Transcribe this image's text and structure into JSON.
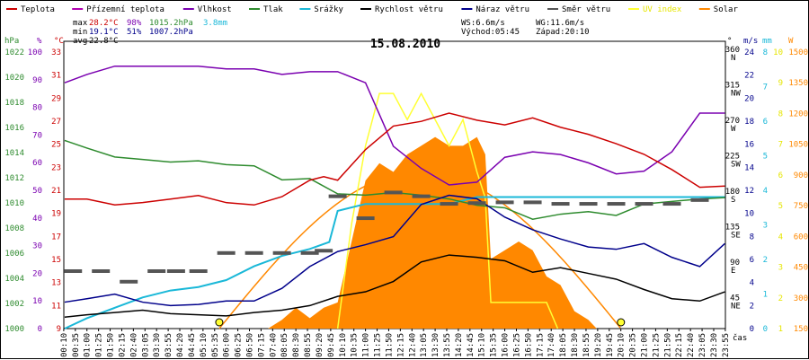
{
  "chart_data": {
    "type": "line",
    "title": "15.08.2010",
    "xlabel": "čas",
    "legend": [
      {
        "name": "Teplota",
        "color": "#cc0000"
      },
      {
        "name": "Přízemní teplota",
        "color": "#b000b0"
      },
      {
        "name": "Vlhkost",
        "color": "#7a00b0"
      },
      {
        "name": "Tlak",
        "color": "#2e8b2e"
      },
      {
        "name": "Srážky",
        "color": "#1ab8d8"
      },
      {
        "name": "Rychlost větru",
        "color": "#000000"
      },
      {
        "name": "Náraz větru",
        "color": "#00008b"
      },
      {
        "name": "Směr větru",
        "color": "#555555"
      },
      {
        "name": "UV index",
        "color": "#ffff33"
      },
      {
        "name": "Solar",
        "color": "#ff8800"
      }
    ],
    "stats": {
      "max": {
        "label": "max",
        "temp": "28.2°C",
        "hum": "98%",
        "press": "1015.2hPa",
        "rain": "3.8mm"
      },
      "min": {
        "label": "min",
        "temp": "19.1°C",
        "hum": "51%",
        "press": "1007.2hPa"
      },
      "avg": {
        "label": "avg",
        "temp": "22.8°C"
      }
    },
    "wind_info": {
      "ws": "WS:6.6m/s",
      "wg": "WG:11.6m/s",
      "sunrise": "Východ:05:45",
      "sunset": "Západ:20:10"
    },
    "axes": {
      "pressure": {
        "unit": "hPa",
        "ticks": [
          "1022",
          "1020",
          "1018",
          "1016",
          "1014",
          "1012",
          "1010",
          "1008",
          "1006",
          "1004",
          "1002",
          "1000"
        ]
      },
      "humidity": {
        "unit": "%",
        "ticks": [
          "100",
          "90",
          "80",
          "70",
          "60",
          "50",
          "40",
          "30",
          "20",
          "10",
          "0"
        ]
      },
      "temperature": {
        "unit": "°C",
        "ticks": [
          "33",
          "31",
          "29",
          "27",
          "25",
          "23",
          "21",
          "19",
          "17",
          "15",
          "13",
          "11",
          "9"
        ]
      },
      "direction": {
        "unit": "°",
        "ticks": [
          "360 N",
          "315 NW",
          "270 W",
          "225 SW",
          "180 S",
          "135 SE",
          "90 E",
          "45 NE"
        ]
      },
      "speed": {
        "unit": "m/s",
        "ticks": [
          "24",
          "22",
          "20",
          "18",
          "16",
          "14",
          "12",
          "10",
          "8",
          "6",
          "4",
          "2",
          "0"
        ]
      },
      "rain": {
        "unit": "mm",
        "ticks": [
          "8",
          "7",
          "6",
          "5",
          "4",
          "3",
          "2",
          "1",
          "0"
        ]
      },
      "uv": {
        "unit": "",
        "ticks": [
          "10",
          "9",
          "8",
          "7",
          "6",
          "5",
          "4",
          "3",
          "2",
          "1"
        ]
      },
      "solar": {
        "unit": "W",
        "ticks": [
          "1500",
          "1350",
          "1200",
          "1050",
          "900",
          "750",
          "600",
          "450",
          "300",
          "150"
        ]
      }
    },
    "x_ticks": [
      "00:10",
      "00:35",
      "01:00",
      "01:25",
      "01:50",
      "02:15",
      "02:40",
      "03:05",
      "03:30",
      "03:55",
      "04:20",
      "04:45",
      "05:10",
      "05:35",
      "06:00",
      "06:25",
      "06:50",
      "07:15",
      "07:40",
      "08:05",
      "08:30",
      "08:55",
      "09:20",
      "09:45",
      "10:10",
      "10:35",
      "11:00",
      "11:25",
      "11:50",
      "12:15",
      "12:40",
      "13:05",
      "13:30",
      "13:55",
      "14:20",
      "14:45",
      "15:10",
      "15:35",
      "16:00",
      "16:25",
      "16:50",
      "17:15",
      "17:40",
      "18:05",
      "18:30",
      "18:55",
      "19:20",
      "19:45",
      "20:10",
      "20:35",
      "21:00",
      "21:25",
      "21:50",
      "22:15",
      "22:40",
      "23:05",
      "23:30",
      "23:55"
    ],
    "x_range_hours": [
      0.17,
      23.92
    ],
    "series": {
      "temperature_c": {
        "x": [
          0.2,
          1,
          2,
          3,
          4,
          5,
          6,
          7,
          8,
          9,
          9.5,
          10,
          11,
          12,
          13,
          14,
          15,
          16,
          17,
          18,
          19,
          20,
          21,
          22,
          23,
          23.9
        ],
        "y": [
          20.0,
          20.0,
          19.5,
          19.7,
          20.0,
          20.3,
          19.7,
          19.5,
          20.2,
          21.6,
          21.9,
          21.6,
          24.2,
          26.2,
          26.6,
          27.3,
          26.7,
          26.3,
          26.9,
          26.1,
          25.5,
          24.7,
          23.8,
          22.5,
          21.0,
          21.1
        ]
      },
      "humidity_pct": {
        "x": [
          0.2,
          1,
          2,
          3,
          4,
          5,
          6,
          7,
          8,
          9,
          10,
          11,
          12,
          13,
          14,
          15,
          16,
          17,
          18,
          19,
          20,
          21,
          22,
          23,
          23.9
        ],
        "y": [
          89,
          92,
          95,
          95,
          95,
          95,
          94,
          94,
          92,
          93,
          93,
          89,
          66,
          58,
          52,
          53,
          62,
          64,
          63,
          60,
          56,
          57,
          64,
          78,
          78
        ]
      },
      "pressure_hpa": {
        "x": [
          0.2,
          1,
          2,
          3,
          4,
          5,
          6,
          7,
          8,
          9,
          10,
          11,
          12,
          13,
          14,
          15,
          16,
          17,
          18,
          19,
          20,
          21,
          22,
          23,
          23.9
        ],
        "y": [
          1014.8,
          1014.2,
          1013.5,
          1013.3,
          1013.1,
          1013.2,
          1012.9,
          1012.8,
          1011.7,
          1011.8,
          1010.6,
          1010.5,
          1010.7,
          1010.5,
          1010.2,
          1009.7,
          1009.5,
          1008.6,
          1009.0,
          1009.2,
          1008.9,
          1009.8,
          1010.0,
          1010.2,
          1010.3
        ]
      },
      "rain_mm": {
        "x": [
          0.2,
          1,
          2,
          3,
          4,
          5,
          6,
          7,
          8,
          9,
          9.7,
          10,
          11,
          12,
          13,
          14,
          15,
          16,
          17,
          18,
          19,
          20,
          21,
          22,
          23,
          23.9
        ],
        "y": [
          0,
          0.3,
          0.6,
          0.9,
          1.1,
          1.2,
          1.4,
          1.8,
          2.1,
          2.3,
          2.5,
          3.4,
          3.6,
          3.6,
          3.6,
          3.6,
          3.8,
          3.8,
          3.8,
          3.8,
          3.8,
          3.8,
          3.8,
          3.8,
          3.8,
          3.8
        ]
      },
      "wind_speed_ms": {
        "x": [
          0.2,
          1,
          2,
          3,
          4,
          5,
          6,
          7,
          8,
          9,
          10,
          11,
          12,
          13,
          14,
          15,
          16,
          17,
          18,
          19,
          20,
          21,
          22,
          23,
          23.9
        ],
        "y": [
          1.0,
          1.2,
          1.4,
          1.6,
          1.3,
          1.2,
          1.1,
          1.4,
          1.6,
          2.0,
          2.8,
          3.2,
          4.1,
          5.8,
          6.4,
          6.2,
          5.9,
          4.9,
          5.3,
          4.8,
          4.3,
          3.4,
          2.6,
          2.4,
          3.2
        ]
      },
      "wind_gust_ms": {
        "x": [
          0.2,
          1,
          2,
          3,
          4,
          5,
          6,
          7,
          8,
          9,
          10,
          11,
          12,
          13,
          14,
          15,
          16,
          17,
          18,
          19,
          20,
          21,
          22,
          23,
          23.9
        ],
        "y": [
          2.3,
          2.6,
          3.0,
          2.3,
          2.0,
          2.1,
          2.4,
          2.4,
          3.5,
          5.4,
          6.7,
          7.3,
          8.0,
          10.8,
          11.6,
          11.3,
          9.7,
          8.6,
          7.8,
          7.1,
          6.9,
          7.4,
          6.2,
          5.4,
          7.4
        ]
      },
      "wind_dir_deg": {
        "x": [
          0.5,
          1.5,
          2.5,
          3.5,
          4.2,
          5,
          6,
          7,
          8,
          9,
          9.5,
          10,
          11,
          12,
          13,
          14,
          15,
          16,
          17,
          18,
          19,
          20,
          21,
          22,
          23
        ],
        "y": [
          76,
          76,
          62,
          76,
          76,
          76,
          100,
          100,
          100,
          100,
          103,
          175,
          146,
          180,
          175,
          165,
          166,
          167,
          167,
          165,
          165,
          165,
          165,
          165,
          170
        ]
      },
      "solar_wm2": {
        "x": [
          7.5,
          8,
          8.5,
          9,
          9.5,
          10,
          10.5,
          11,
          11.5,
          12,
          12.5,
          13,
          13.5,
          14,
          14.5,
          15,
          15.3,
          15.5,
          16,
          16.5,
          17,
          17.5,
          18,
          18.5,
          19,
          19.3
        ],
        "y": [
          0,
          50,
          120,
          60,
          120,
          150,
          500,
          850,
          950,
          900,
          1000,
          1050,
          1100,
          1050,
          1050,
          1100,
          1000,
          400,
          450,
          500,
          450,
          300,
          250,
          100,
          50,
          0
        ]
      },
      "uv_index": {
        "x": [
          10,
          10.5,
          11,
          11.5,
          12,
          12.5,
          13,
          13.5,
          14,
          14.5,
          15,
          15.3,
          15.5,
          16,
          16.5,
          17,
          17.5,
          17.9
        ],
        "y": [
          0,
          4,
          7,
          9,
          9,
          8,
          9,
          8,
          7,
          8,
          6,
          5,
          1,
          1,
          1,
          1,
          1,
          0
        ]
      },
      "solar_theoretical_wm2": {
        "sunrise": 5.75,
        "sunset": 20.17,
        "peak": 900
      }
    }
  }
}
